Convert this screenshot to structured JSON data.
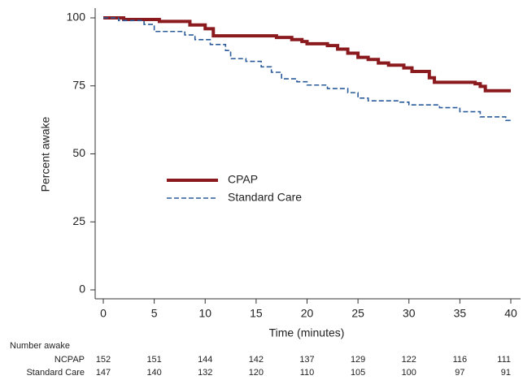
{
  "chart_data": {
    "type": "step",
    "x_label": "Time (minutes)",
    "y_label": "Percent awake",
    "xlim": [
      0,
      40
    ],
    "ylim": [
      0,
      100
    ],
    "xticks": [
      0,
      5,
      10,
      15,
      20,
      25,
      30,
      35,
      40
    ],
    "yticks": [
      0,
      25,
      50,
      75,
      100
    ],
    "series": [
      {
        "name": "CPAP",
        "color": "#8b1a1f",
        "x": [
          0,
          2,
          5.5,
          8.5,
          10,
          10.8,
          17,
          18.5,
          19.5,
          20,
          22,
          23,
          24,
          25,
          26,
          27,
          28,
          29.5,
          30.3,
          32,
          32.5,
          36.5,
          37,
          37.5,
          40
        ],
        "values": [
          100,
          99.4,
          98.7,
          97.4,
          96,
          93.4,
          92.8,
          92,
          91.3,
          90.5,
          89.8,
          88.5,
          87,
          85.5,
          84.7,
          83.4,
          82.6,
          81.6,
          80.3,
          78,
          76.3,
          75.8,
          74.8,
          73.2,
          73.2
        ]
      },
      {
        "name": "Standard Care",
        "color": "#2a5b9a",
        "x": [
          0,
          1.5,
          4,
          5,
          8,
          9,
          10.5,
          12,
          12.5,
          14,
          15.5,
          16.5,
          17.5,
          19,
          20,
          22,
          24,
          25,
          26,
          29,
          30,
          33,
          35,
          37,
          39.5,
          40
        ],
        "values": [
          100,
          99,
          97.6,
          95,
          93.7,
          92,
          90.2,
          88,
          85,
          84,
          82,
          80,
          77.6,
          76.5,
          75.3,
          74,
          72.5,
          70.5,
          69.5,
          69,
          68,
          67,
          65.5,
          63.6,
          62.3,
          62
        ]
      }
    ],
    "number_at_risk": {
      "title": "Number awake",
      "rows": [
        {
          "label": "NCPAP",
          "values": [
            152,
            151,
            144,
            142,
            137,
            129,
            122,
            116,
            111
          ]
        },
        {
          "label": "Standard Care",
          "values": [
            147,
            140,
            132,
            120,
            110,
            105,
            100,
            97,
            91
          ]
        }
      ]
    }
  }
}
